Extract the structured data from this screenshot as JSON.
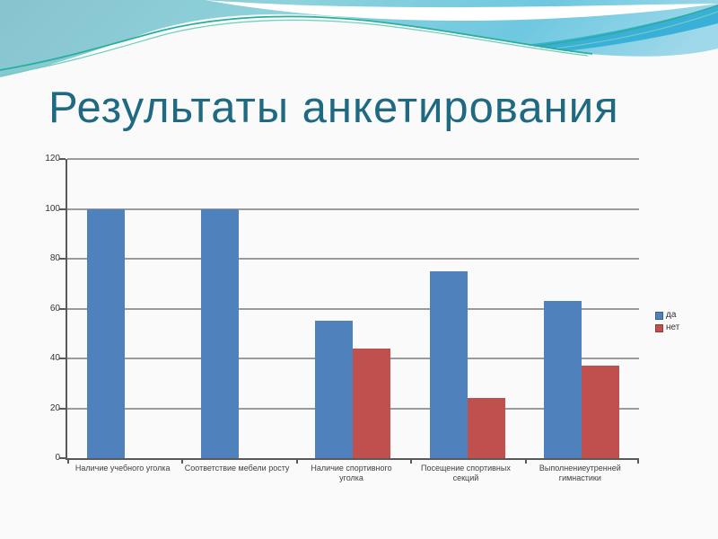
{
  "slide": {
    "title": "Результаты анкетирования",
    "title_color": "#1f6a82",
    "background_color": "#fafafa",
    "decor_colors": {
      "sky_left": "#87c3ce",
      "sky_mid": "#8ed2dc",
      "sky_right": "#9fd8ea",
      "dark_band": "#3aafd8",
      "teal_line": "#28b09c",
      "teal_line_light": "#6fcebc",
      "wave_white": "#ffffff"
    }
  },
  "chart_data": {
    "type": "bar",
    "title": "",
    "xlabel": "",
    "ylabel": "",
    "categories": [
      "Наличие учебного уголка",
      "Соответствие мебели росту",
      "Наличие спортивного уголка",
      "Посещение спортивных секций",
      "Выполнениеутренней гимнастики"
    ],
    "series": [
      {
        "name": "да",
        "color": "#4F81BD",
        "values": [
          100,
          100,
          55,
          75,
          63
        ]
      },
      {
        "name": "нет",
        "color": "#C0504D",
        "values": [
          0,
          0,
          44,
          24,
          37
        ]
      }
    ],
    "ylim": [
      0,
      120
    ],
    "yticks": [
      0,
      20,
      40,
      60,
      80,
      100,
      120
    ],
    "grid": true,
    "legend_position": "right"
  }
}
